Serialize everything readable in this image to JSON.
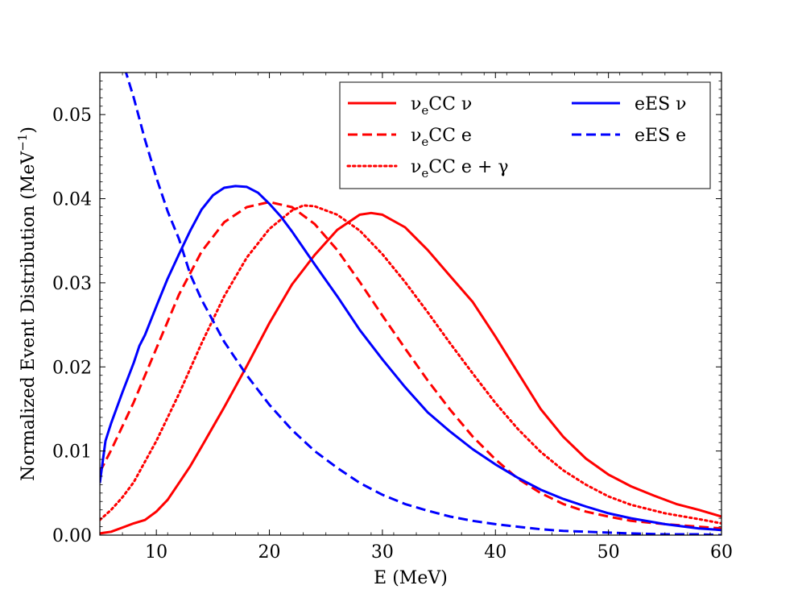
{
  "chart_data": {
    "type": "line",
    "title": "",
    "xlabel": "E (MeV)",
    "ylabel": "Normalized Event Distribution (MeV",
    "ylabel_sup": "−1",
    "ylabel_close": ")",
    "xlim": [
      5,
      60
    ],
    "ylim": [
      0,
      0.055
    ],
    "xticks": [
      10,
      20,
      30,
      40,
      50,
      60
    ],
    "yticks": [
      0.0,
      0.01,
      0.02,
      0.03,
      0.04,
      0.05
    ],
    "ytick_labels": [
      "0.00",
      "0.01",
      "0.02",
      "0.03",
      "0.04",
      "0.05"
    ],
    "legend_position": "top-right",
    "series": [
      {
        "name": "νeCC ν",
        "legend": {
          "main": "ν",
          "sub": "e",
          "rest": "CC ν"
        },
        "color": "#ff0000",
        "style": "solid",
        "x": [
          5,
          6,
          7,
          8,
          9,
          10,
          11,
          12,
          13,
          14,
          16,
          18,
          20,
          22,
          24,
          26,
          28,
          29,
          30,
          32,
          34,
          36,
          38,
          40,
          42,
          44,
          46,
          48,
          50,
          52,
          54,
          56,
          58,
          60
        ],
        "y": [
          0.0002,
          0.0004,
          0.0009,
          0.0014,
          0.0018,
          0.0028,
          0.0042,
          0.0062,
          0.0082,
          0.0105,
          0.0152,
          0.0201,
          0.0252,
          0.0298,
          0.0333,
          0.0363,
          0.0381,
          0.0383,
          0.0381,
          0.0366,
          0.0339,
          0.0308,
          0.0277,
          0.0236,
          0.0193,
          0.015,
          0.0117,
          0.0091,
          0.0072,
          0.0058,
          0.0047,
          0.0037,
          0.003,
          0.0022
        ]
      },
      {
        "name": "νeCC e",
        "legend": {
          "main": "ν",
          "sub": "e",
          "rest": "CC e"
        },
        "color": "#ff0000",
        "style": "dashed",
        "x": [
          5,
          6,
          8,
          10,
          12,
          14,
          16,
          18,
          20,
          22,
          24,
          26,
          28,
          30,
          32,
          34,
          36,
          38,
          40,
          42,
          44,
          46,
          48,
          50,
          52,
          55,
          58,
          60
        ],
        "y": [
          0.0075,
          0.0101,
          0.0158,
          0.0222,
          0.0286,
          0.0337,
          0.0372,
          0.039,
          0.0396,
          0.039,
          0.037,
          0.0339,
          0.0301,
          0.0261,
          0.0222,
          0.0184,
          0.0149,
          0.0117,
          0.009,
          0.0067,
          0.005,
          0.0037,
          0.0028,
          0.0022,
          0.0017,
          0.0013,
          0.001,
          0.0008
        ]
      },
      {
        "name": "νeCC e + γ",
        "legend": {
          "main": "ν",
          "sub": "e",
          "rest": "CC e + γ"
        },
        "color": "#ff0000",
        "style": "dotted",
        "x": [
          5,
          6,
          7,
          8,
          10,
          12,
          14,
          16,
          18,
          20,
          22,
          23,
          24,
          26,
          28,
          30,
          32,
          34,
          36,
          38,
          40,
          42,
          44,
          46,
          48,
          50,
          52,
          55,
          58,
          60
        ],
        "y": [
          0.0018,
          0.003,
          0.0045,
          0.0063,
          0.0112,
          0.0168,
          0.0228,
          0.0284,
          0.033,
          0.0364,
          0.0386,
          0.0392,
          0.0391,
          0.0381,
          0.0362,
          0.0334,
          0.0301,
          0.0265,
          0.0228,
          0.0192,
          0.0157,
          0.0126,
          0.0099,
          0.0077,
          0.006,
          0.0046,
          0.0036,
          0.0026,
          0.0019,
          0.0014
        ]
      },
      {
        "name": "eES ν",
        "legend": {
          "main": "eES ν",
          "sub": "",
          "rest": ""
        },
        "color": "#0000ff",
        "style": "solid",
        "x": [
          5,
          5.5,
          6,
          7,
          8,
          8.5,
          9,
          10,
          11,
          12,
          13,
          14,
          15,
          16,
          17,
          18,
          19,
          20,
          21,
          22,
          24,
          26,
          28,
          30,
          32,
          34,
          36,
          38,
          40,
          42,
          44,
          46,
          48,
          50,
          52,
          55,
          58,
          60
        ],
        "y": [
          0.0062,
          0.0112,
          0.0133,
          0.017,
          0.0205,
          0.0225,
          0.0238,
          0.0272,
          0.0305,
          0.0334,
          0.0362,
          0.0387,
          0.0404,
          0.0413,
          0.0415,
          0.0414,
          0.0407,
          0.0394,
          0.0379,
          0.0361,
          0.0322,
          0.0284,
          0.0244,
          0.0209,
          0.0176,
          0.0146,
          0.0123,
          0.0102,
          0.0084,
          0.0068,
          0.0054,
          0.0043,
          0.0034,
          0.0026,
          0.002,
          0.0013,
          0.0008,
          0.0006
        ]
      },
      {
        "name": "eES e",
        "legend": {
          "main": "eES e",
          "sub": "",
          "rest": ""
        },
        "color": "#0000ff",
        "style": "dashed",
        "x": [
          7.2,
          8,
          9,
          10,
          11,
          12,
          13,
          14,
          15,
          16,
          18,
          20,
          22,
          24,
          26,
          28,
          30,
          32,
          34,
          36,
          38,
          40,
          42,
          44,
          46,
          48,
          50,
          52,
          55,
          58,
          60
        ],
        "y": [
          0.0555,
          0.052,
          0.047,
          0.0425,
          0.0385,
          0.0352,
          0.031,
          0.028,
          0.0255,
          0.023,
          0.019,
          0.0155,
          0.0125,
          0.01,
          0.008,
          0.0062,
          0.0048,
          0.0037,
          0.0029,
          0.0022,
          0.0017,
          0.0013,
          0.001,
          0.0007,
          0.0005,
          0.0004,
          0.0003,
          0.0002,
          0.0001,
          0.0001,
          0.0
        ]
      }
    ]
  }
}
